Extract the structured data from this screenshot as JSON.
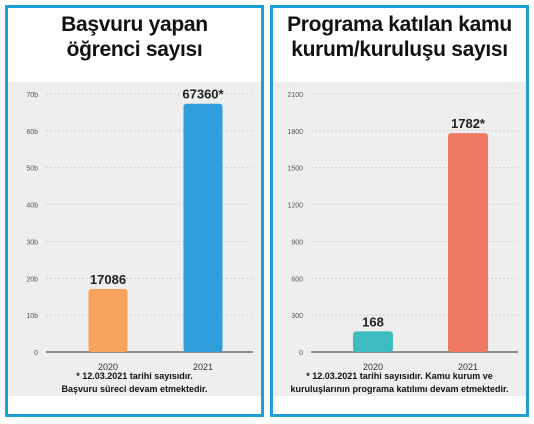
{
  "charts": [
    {
      "title_lines": [
        "Başvuru yapan",
        "öğrenci sayısı"
      ],
      "footnote_lines": [
        "* 12.03.2021 tarihi sayısıdır.",
        "Başvuru süreci devam etmektedir."
      ]
    },
    {
      "title_lines": [
        "Programa katılan kamu",
        "kurum/kuruluşu sayısı"
      ],
      "footnote_lines": [
        "* 12.03.2021 tarihi sayısıdır. Kamu kurum ve",
        "kuruluşlarının programa katılımı devam etmektedir."
      ]
    }
  ],
  "chart_data": [
    {
      "type": "bar",
      "title": "Başvuru yapan öğrenci sayısı",
      "categories": [
        "2020",
        "2021"
      ],
      "values": [
        17086,
        67360
      ],
      "value_labels": [
        "17086",
        "67360*"
      ],
      "ylim": [
        0,
        70000
      ],
      "yticks": [
        0,
        10000,
        20000,
        30000,
        40000,
        50000,
        60000,
        70000
      ],
      "ytick_labels": [
        "0",
        "10b",
        "20b",
        "30b",
        "40b",
        "50b",
        "60b",
        "70b"
      ],
      "colors": [
        "#f7a35c",
        "#2e9fdc"
      ],
      "grid": true
    },
    {
      "type": "bar",
      "title": "Programa katılan kamu kurum/kuruluşu sayısı",
      "categories": [
        "2020",
        "2021"
      ],
      "values": [
        168,
        1782
      ],
      "value_labels": [
        "168",
        "1782*"
      ],
      "ylim": [
        0,
        2100
      ],
      "yticks": [
        0,
        300,
        600,
        900,
        1200,
        1500,
        1800,
        2100
      ],
      "ytick_labels": [
        "0",
        "300",
        "600",
        "900",
        "1200",
        "1500",
        "1800",
        "2100"
      ],
      "colors": [
        "#3dbdc0",
        "#f07a62"
      ],
      "grid": true
    }
  ]
}
